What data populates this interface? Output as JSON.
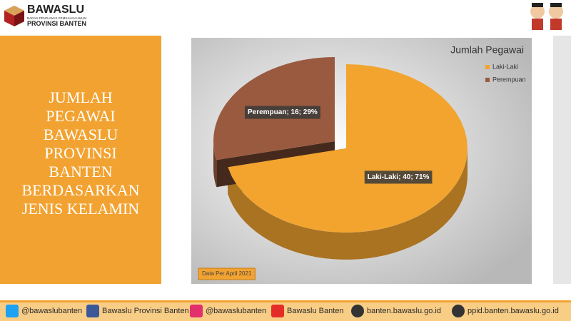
{
  "header": {
    "logo_title": "BAWASLU",
    "logo_subtitle": "BADAN PENGAWAS PEMILIHAN UMUM",
    "logo_region": "PROVINSI BANTEN"
  },
  "panel": {
    "title": "JUMLAH PEGAWAI BAWASLU PROVINSI BANTEN BERDASARKAN JENIS KELAMIN"
  },
  "chart_data": {
    "type": "pie",
    "title": "Jumlah Pegawai",
    "categories": [
      "Laki-Laki",
      "Perempuan"
    ],
    "values": [
      40,
      16
    ],
    "value_labels": [
      "Laki-Laki; 40; 71%",
      "Perempuan; 16; 29%"
    ],
    "colors": [
      "#f2a42f",
      "#9a5a3f"
    ],
    "legend": "top-right",
    "note": "Data Per April 2021"
  },
  "footer": {
    "items": [
      "@bawaslubanten",
      "Bawaslu Provinsi Banten",
      "@bawaslubanten",
      "Bawaslu Banten",
      "banten.bawaslu.go.id",
      "ppid.banten.bawaslu.go.id"
    ]
  }
}
